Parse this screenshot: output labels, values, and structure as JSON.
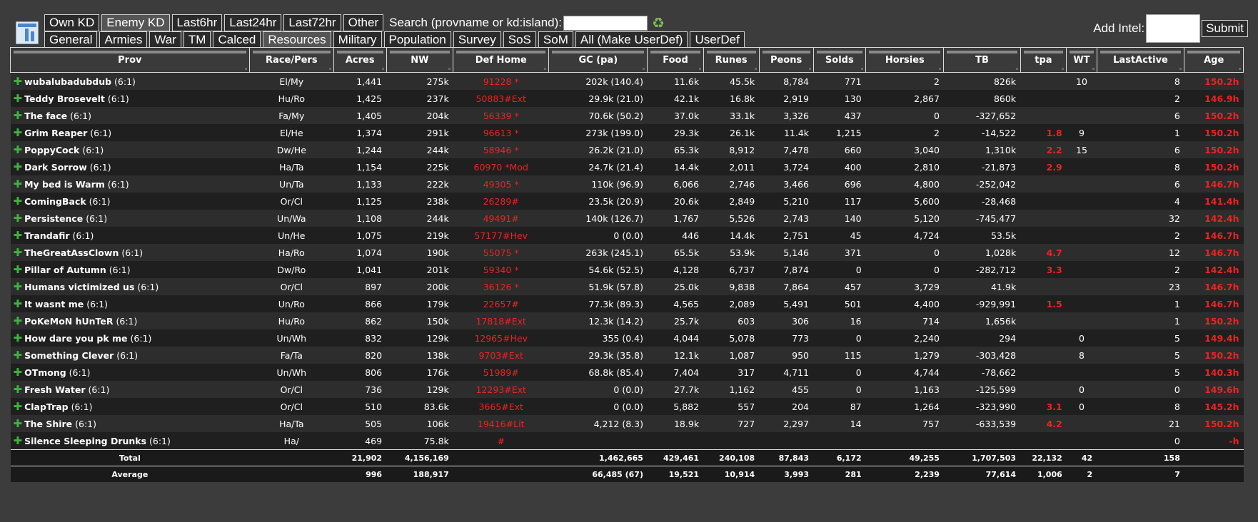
{
  "top": {
    "tabs_row1": [
      "Own KD",
      "Enemy KD",
      "Last6hr",
      "Last24hr",
      "Last72hr",
      "Other"
    ],
    "active_row1": "Enemy KD",
    "search_label": "Search (provname or kd:island):",
    "search_value": "",
    "tabs_row2": [
      "General",
      "Armies",
      "War",
      "TM",
      "Calced",
      "Resources",
      "Military",
      "Population",
      "Survey",
      "SoS",
      "SoM",
      "All (Make UserDef)",
      "UserDef"
    ],
    "active_row2": "Resources",
    "intel_label": "Add Intel:",
    "submit_label": "Submit",
    "icons": {
      "logo": "spreadsheet-logo-icon",
      "refresh": "refresh-icon",
      "add": "plus-icon"
    }
  },
  "columns": [
    "Prov",
    "Race/Pers",
    "Acres",
    "NW",
    "Def Home",
    "GC (pa)",
    "Food",
    "Runes",
    "Peons",
    "Solds",
    "Horsies",
    "TB",
    "tpa",
    "WT",
    "LastActive",
    "Age"
  ],
  "rows": [
    {
      "name": "wubalubadubdub",
      "loc": "(6:1)",
      "race": "El/My",
      "acres": "1,441",
      "nw": "275k",
      "def": "91228 *",
      "gc": "202k (140.4)",
      "food": "11.6k",
      "runes": "45.5k",
      "peons": "8,784",
      "solds": "771",
      "horsies": "2",
      "tb": "826k",
      "tpa": "",
      "wt": "10",
      "last": "8",
      "age": "150.2h"
    },
    {
      "name": "Teddy Brosevelt",
      "loc": "(6:1)",
      "race": "Hu/Ro",
      "acres": "1,425",
      "nw": "237k",
      "def": "50883#Ext",
      "gc": "29.9k (21.0)",
      "food": "42.1k",
      "runes": "16.8k",
      "peons": "2,919",
      "solds": "130",
      "horsies": "2,867",
      "tb": "860k",
      "tpa": "",
      "wt": "",
      "last": "2",
      "age": "146.9h"
    },
    {
      "name": "The face",
      "loc": "(6:1)",
      "race": "Fa/My",
      "acres": "1,405",
      "nw": "204k",
      "def": "56339 *",
      "gc": "70.6k (50.2)",
      "food": "37.0k",
      "runes": "33.1k",
      "peons": "3,326",
      "solds": "437",
      "horsies": "0",
      "tb": "-327,652",
      "tpa": "",
      "wt": "",
      "last": "6",
      "age": "150.2h"
    },
    {
      "name": "Grim Reaper",
      "loc": "(6:1)",
      "race": "El/He",
      "acres": "1,374",
      "nw": "291k",
      "def": "96613 *",
      "gc": "273k (199.0)",
      "food": "29.3k",
      "runes": "26.1k",
      "peons": "11.4k",
      "solds": "1,215",
      "horsies": "2",
      "tb": "-14,522",
      "tpa": "1.8",
      "wt": "9",
      "last": "1",
      "age": "150.2h"
    },
    {
      "name": "PoppyCock",
      "loc": "(6:1)",
      "race": "Dw/He",
      "acres": "1,244",
      "nw": "244k",
      "def": "58946 *",
      "gc": "26.2k (21.0)",
      "food": "65.3k",
      "runes": "8,912",
      "peons": "7,478",
      "solds": "660",
      "horsies": "3,040",
      "tb": "1,310k",
      "tpa": "2.2",
      "wt": "15",
      "last": "6",
      "age": "150.2h"
    },
    {
      "name": "Dark Sorrow",
      "loc": "(6:1)",
      "race": "Ha/Ta",
      "acres": "1,154",
      "nw": "225k",
      "def": "60970 *Mod",
      "gc": "24.7k (21.4)",
      "food": "14.4k",
      "runes": "2,011",
      "peons": "3,724",
      "solds": "400",
      "horsies": "2,810",
      "tb": "-21,873",
      "tpa": "2.9",
      "wt": "",
      "last": "8",
      "age": "150.2h"
    },
    {
      "name": "My bed is Warm",
      "loc": "(6:1)",
      "race": "Un/Ta",
      "acres": "1,133",
      "nw": "222k",
      "def": "49305 *",
      "gc": "110k (96.9)",
      "food": "6,066",
      "runes": "2,746",
      "peons": "3,466",
      "solds": "696",
      "horsies": "4,800",
      "tb": "-252,042",
      "tpa": "",
      "wt": "",
      "last": "6",
      "age": "146.7h"
    },
    {
      "name": "ComingBack",
      "loc": "(6:1)",
      "race": "Or/Cl",
      "acres": "1,125",
      "nw": "238k",
      "def": "26289#",
      "gc": "23.5k (20.9)",
      "food": "20.6k",
      "runes": "2,849",
      "peons": "5,210",
      "solds": "117",
      "horsies": "5,600",
      "tb": "-28,468",
      "tpa": "",
      "wt": "",
      "last": "4",
      "age": "141.4h"
    },
    {
      "name": "Persistence",
      "loc": "(6:1)",
      "race": "Un/Wa",
      "acres": "1,108",
      "nw": "244k",
      "def": "49491#",
      "gc": "140k (126.7)",
      "food": "1,767",
      "runes": "5,526",
      "peons": "2,743",
      "solds": "140",
      "horsies": "5,120",
      "tb": "-745,477",
      "tpa": "",
      "wt": "",
      "last": "32",
      "age": "142.4h"
    },
    {
      "name": "Trandafir",
      "loc": "(6:1)",
      "race": "Un/He",
      "acres": "1,075",
      "nw": "219k",
      "def": "57177#Hev",
      "gc": "0 (0.0)",
      "food": "446",
      "runes": "14.4k",
      "peons": "2,751",
      "solds": "45",
      "horsies": "4,724",
      "tb": "53.5k",
      "tpa": "",
      "wt": "",
      "last": "2",
      "age": "146.7h"
    },
    {
      "name": "TheGreatAssClown",
      "loc": "(6:1)",
      "race": "Ha/Ro",
      "acres": "1,074",
      "nw": "190k",
      "def": "55075 *",
      "gc": "263k (245.1)",
      "food": "65.5k",
      "runes": "53.9k",
      "peons": "5,146",
      "solds": "371",
      "horsies": "0",
      "tb": "1,028k",
      "tpa": "4.7",
      "wt": "",
      "last": "12",
      "age": "146.7h"
    },
    {
      "name": "Pillar of Autumn",
      "loc": "(6:1)",
      "race": "Dw/Ro",
      "acres": "1,041",
      "nw": "201k",
      "def": "59340 *",
      "gc": "54.6k (52.5)",
      "food": "4,128",
      "runes": "6,737",
      "peons": "7,874",
      "solds": "0",
      "horsies": "0",
      "tb": "-282,712",
      "tpa": "3.3",
      "wt": "",
      "last": "2",
      "age": "142.4h"
    },
    {
      "name": "Humans victimized us",
      "loc": "(6:1)",
      "race": "Or/Cl",
      "acres": "897",
      "nw": "200k",
      "def": "36126 *",
      "gc": "51.9k (57.8)",
      "food": "25.0k",
      "runes": "9,838",
      "peons": "7,864",
      "solds": "457",
      "horsies": "3,729",
      "tb": "41.9k",
      "tpa": "",
      "wt": "",
      "last": "23",
      "age": "146.7h"
    },
    {
      "name": "It wasnt me",
      "loc": "(6:1)",
      "race": "Un/Ro",
      "acres": "866",
      "nw": "179k",
      "def": "22657#",
      "gc": "77.3k (89.3)",
      "food": "4,565",
      "runes": "2,089",
      "peons": "5,491",
      "solds": "501",
      "horsies": "4,400",
      "tb": "-929,991",
      "tpa": "1.5",
      "wt": "",
      "last": "1",
      "age": "146.7h"
    },
    {
      "name": "PoKeMoN hUnTeR",
      "loc": "(6:1)",
      "race": "Hu/Ro",
      "acres": "862",
      "nw": "150k",
      "def": "17818#Ext",
      "gc": "12.3k (14.2)",
      "food": "25.7k",
      "runes": "603",
      "peons": "306",
      "solds": "16",
      "horsies": "714",
      "tb": "1,656k",
      "tpa": "",
      "wt": "",
      "last": "1",
      "age": "150.2h"
    },
    {
      "name": "How dare you pk me",
      "loc": "(6:1)",
      "race": "Un/Wh",
      "acres": "832",
      "nw": "129k",
      "def": "12965#Hev",
      "gc": "355 (0.4)",
      "food": "4,044",
      "runes": "5,078",
      "peons": "773",
      "solds": "0",
      "horsies": "2,240",
      "tb": "294",
      "tpa": "",
      "wt": "0",
      "last": "5",
      "age": "149.4h"
    },
    {
      "name": "Something Clever",
      "loc": "(6:1)",
      "race": "Fa/Ta",
      "acres": "820",
      "nw": "138k",
      "def": "9703#Ext",
      "gc": "29.3k (35.8)",
      "food": "12.1k",
      "runes": "1,087",
      "peons": "950",
      "solds": "115",
      "horsies": "1,279",
      "tb": "-303,428",
      "tpa": "",
      "wt": "8",
      "last": "5",
      "age": "150.2h"
    },
    {
      "name": "OTmong",
      "loc": "(6:1)",
      "race": "Un/Wh",
      "acres": "806",
      "nw": "176k",
      "def": "51989#",
      "gc": "68.8k (85.4)",
      "food": "7,404",
      "runes": "317",
      "peons": "4,711",
      "solds": "0",
      "horsies": "4,744",
      "tb": "-78,662",
      "tpa": "",
      "wt": "",
      "last": "5",
      "age": "140.3h"
    },
    {
      "name": "Fresh Water",
      "loc": "(6:1)",
      "race": "Or/Cl",
      "acres": "736",
      "nw": "129k",
      "def": "12293#Ext",
      "gc": "0 (0.0)",
      "food": "27.7k",
      "runes": "1,162",
      "peons": "455",
      "solds": "0",
      "horsies": "1,163",
      "tb": "-125,599",
      "tpa": "",
      "wt": "0",
      "last": "0",
      "age": "149.6h"
    },
    {
      "name": "ClapTrap",
      "loc": "(6:1)",
      "race": "Or/Cl",
      "acres": "510",
      "nw": "83.6k",
      "def": "3665#Ext",
      "gc": "0 (0.0)",
      "food": "5,882",
      "runes": "557",
      "peons": "204",
      "solds": "87",
      "horsies": "1,264",
      "tb": "-323,990",
      "tpa": "3.1",
      "wt": "0",
      "last": "8",
      "age": "145.2h"
    },
    {
      "name": "The Shire",
      "loc": "(6:1)",
      "race": "Ha/Ta",
      "acres": "505",
      "nw": "106k",
      "def": "19416#Lit",
      "gc": "4,212 (8.3)",
      "food": "18.9k",
      "runes": "727",
      "peons": "2,297",
      "solds": "14",
      "horsies": "757",
      "tb": "-633,539",
      "tpa": "4.2",
      "wt": "",
      "last": "21",
      "age": "150.2h"
    },
    {
      "name": "Silence Sleeping Drunks",
      "loc": "(6:1)",
      "race": "Ha/",
      "acres": "469",
      "nw": "75.8k",
      "def": "#",
      "gc": "",
      "food": "",
      "runes": "",
      "peons": "",
      "solds": "",
      "horsies": "",
      "tb": "",
      "tpa": "",
      "wt": "",
      "last": "0",
      "age": "-h"
    }
  ],
  "totals": {
    "label": "Total",
    "acres": "21,902",
    "nw": "4,156,169",
    "gc": "1,462,665",
    "food": "429,461",
    "runes": "240,108",
    "peons": "87,843",
    "solds": "6,172",
    "horsies": "49,255",
    "tb": "1,707,503",
    "tpa": "22,132",
    "wt": "42",
    "last": "158"
  },
  "averages": {
    "label": "Average",
    "acres": "996",
    "nw": "188,917",
    "gc": "66,485 (67)",
    "food": "19,521",
    "runes": "10,914",
    "peons": "3,993",
    "solds": "281",
    "horsies": "2,239",
    "tb": "77,614",
    "tpa": "1,006",
    "wt": "2",
    "last": "7"
  },
  "colors": {
    "background": "#3c3c3c",
    "row_odd": "#2d2d2d",
    "row_even": "#1f1f1f",
    "alert_red": "#ee2222",
    "plus_green": "#3fb13f"
  }
}
